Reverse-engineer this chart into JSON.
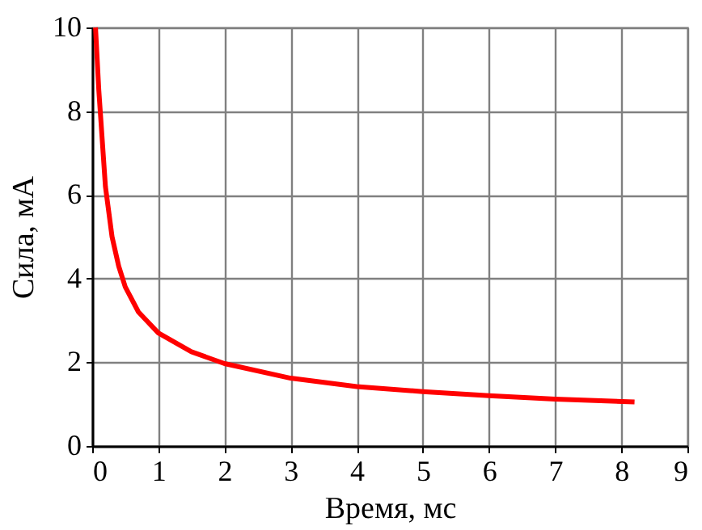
{
  "chart_data": {
    "type": "line",
    "xlabel": "Время, мс",
    "ylabel": "Сила, мА",
    "x": [
      0.05,
      0.1,
      0.2,
      0.3,
      0.4,
      0.5,
      0.7,
      1,
      1.5,
      2,
      3,
      4,
      5,
      6,
      7,
      8.2
    ],
    "series": [
      {
        "color": "#ff0000",
        "values": [
          10,
          8.5,
          6.2,
          5.0,
          4.3,
          3.8,
          3.2,
          2.7,
          2.25,
          1.97,
          1.62,
          1.42,
          1.3,
          1.2,
          1.12,
          1.05
        ]
      }
    ],
    "xlim": [
      0,
      9
    ],
    "xticks": [
      0,
      1,
      2,
      3,
      4,
      5,
      6,
      7,
      8,
      9
    ],
    "ylim": [
      0,
      10
    ],
    "yticks": [
      0,
      2,
      4,
      6,
      8,
      10
    ],
    "grid": true,
    "marker": "none",
    "line_style": "solid"
  }
}
